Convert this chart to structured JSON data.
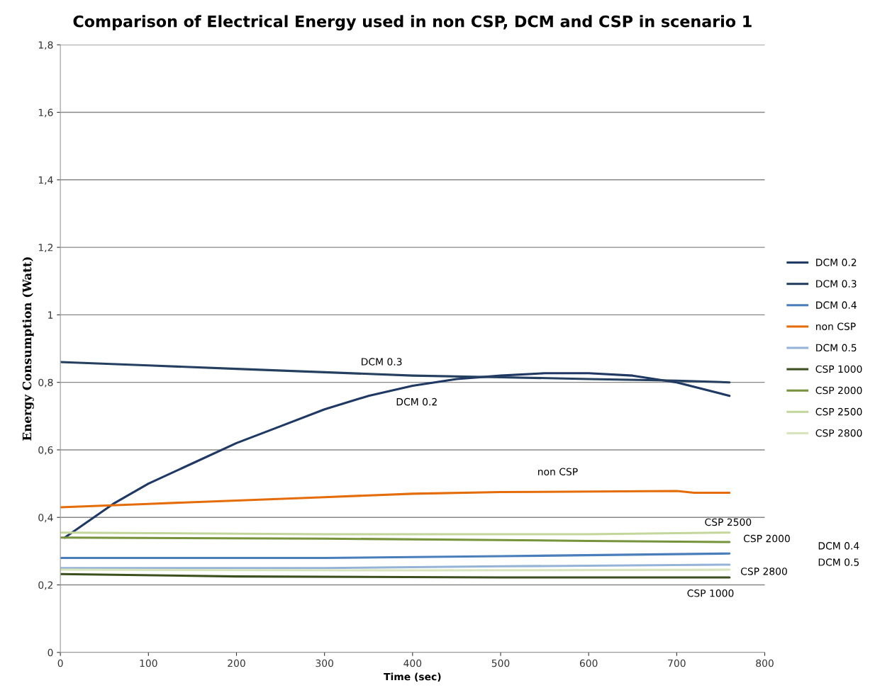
{
  "chart_data": {
    "type": "line",
    "title": "Comparison of Electrical Energy used in non CSP, DCM and CSP in scenario 1",
    "xlabel": "Time (sec)",
    "ylabel": "Energy Consumption (Watt)",
    "xlim": [
      0,
      800
    ],
    "xticks": [
      0,
      100,
      200,
      300,
      400,
      500,
      600,
      700,
      800
    ],
    "ylim": [
      0,
      1.8
    ],
    "yticks": [
      0,
      {
        "value": 0.2,
        "label": "0,2"
      },
      {
        "value": 0.4,
        "label": "0,4"
      },
      {
        "value": 0.6,
        "label": "0,6"
      },
      {
        "value": 0.8,
        "label": "0,8"
      },
      1,
      {
        "value": 1.2,
        "label": "1,2"
      },
      {
        "value": 1.4,
        "label": "1,4"
      },
      {
        "value": 1.6,
        "label": "1,6"
      },
      {
        "value": 1.8,
        "label": "1,8"
      }
    ],
    "grid": "y",
    "legend": "right",
    "marker": "none",
    "line_style": "solid",
    "series": [
      {
        "name": "DCM 0.2",
        "color": "#1f3864",
        "x": [
          5,
          60,
          100,
          150,
          200,
          250,
          300,
          350,
          400,
          450,
          500,
          550,
          600,
          650,
          700,
          760
        ],
        "values": [
          0.34,
          0.44,
          0.5,
          0.56,
          0.62,
          0.67,
          0.72,
          0.76,
          0.79,
          0.81,
          0.82,
          0.827,
          0.827,
          0.82,
          0.8,
          0.76
        ]
      },
      {
        "name": "DCM 0.3",
        "color": "#243f60",
        "x": [
          0,
          100,
          200,
          300,
          400,
          500,
          600,
          700,
          760
        ],
        "values": [
          0.86,
          0.85,
          0.84,
          0.83,
          0.82,
          0.815,
          0.81,
          0.805,
          0.8
        ]
      },
      {
        "name": "DCM 0.4",
        "color": "#4a7ebb",
        "x": [
          0,
          300,
          500,
          760
        ],
        "values": [
          0.28,
          0.28,
          0.285,
          0.293
        ]
      },
      {
        "name": "non CSP",
        "color": "#e46c0a",
        "x": [
          0,
          100,
          200,
          300,
          400,
          500,
          700,
          720,
          760
        ],
        "values": [
          0.43,
          0.44,
          0.45,
          0.46,
          0.47,
          0.475,
          0.478,
          0.473,
          0.473
        ]
      },
      {
        "name": "DCM 0.5",
        "color": "#95b3d7",
        "x": [
          0,
          300,
          500,
          760
        ],
        "values": [
          0.25,
          0.25,
          0.255,
          0.26
        ]
      },
      {
        "name": "CSP 1000",
        "color": "#3c4f1e",
        "x": [
          0,
          200,
          500,
          760
        ],
        "values": [
          0.232,
          0.225,
          0.222,
          0.222
        ]
      },
      {
        "name": "CSP 2000",
        "color": "#77933c",
        "x": [
          0,
          300,
          500,
          600,
          760
        ],
        "values": [
          0.34,
          0.337,
          0.333,
          0.33,
          0.327
        ]
      },
      {
        "name": "CSP 2500",
        "color": "#c3d69b",
        "x": [
          0,
          300,
          600,
          760
        ],
        "values": [
          0.355,
          0.35,
          0.35,
          0.355
        ]
      },
      {
        "name": "CSP 2800",
        "color": "#d7e4bd",
        "x": [
          0,
          400,
          760
        ],
        "values": [
          0.245,
          0.243,
          0.245
        ]
      }
    ],
    "annotations": [
      "DCM 0.3",
      "DCM 0.2",
      "non CSP",
      "CSP 2500",
      "CSP 2000",
      "DCM 0.4",
      "DCM 0.5",
      "CSP 2800",
      "CSP 1000"
    ]
  }
}
